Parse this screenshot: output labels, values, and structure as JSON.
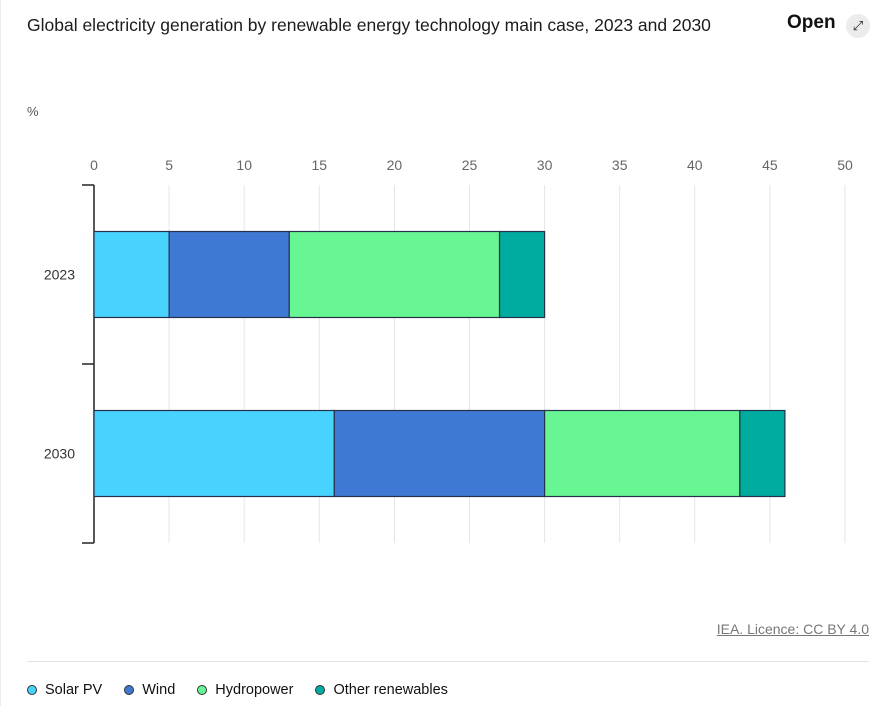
{
  "header": {
    "open_label": "Open",
    "open_icon": "expand-icon"
  },
  "credit": "IEA. Licence: CC BY 4.0",
  "chart_data": {
    "type": "bar",
    "orientation": "horizontal",
    "stacked": true,
    "title": "Global electricity generation by renewable energy technology main case, 2023 and 2030",
    "unit_label": "%",
    "xlim": [
      0,
      50
    ],
    "xticks": [
      0,
      5,
      10,
      15,
      20,
      25,
      30,
      35,
      40,
      45,
      50
    ],
    "grid": true,
    "legend_position": "bottom-left",
    "categories": [
      "2023",
      "2030"
    ],
    "series": [
      {
        "name": "Solar PV",
        "color": "#48d3ff",
        "values": [
          5,
          16
        ]
      },
      {
        "name": "Wind",
        "color": "#3e7ad3",
        "values": [
          8,
          14
        ]
      },
      {
        "name": "Hydropower",
        "color": "#68f594",
        "values": [
          14,
          13
        ]
      },
      {
        "name": "Other renewables",
        "color": "#00ab9f",
        "values": [
          3,
          3
        ]
      }
    ]
  }
}
